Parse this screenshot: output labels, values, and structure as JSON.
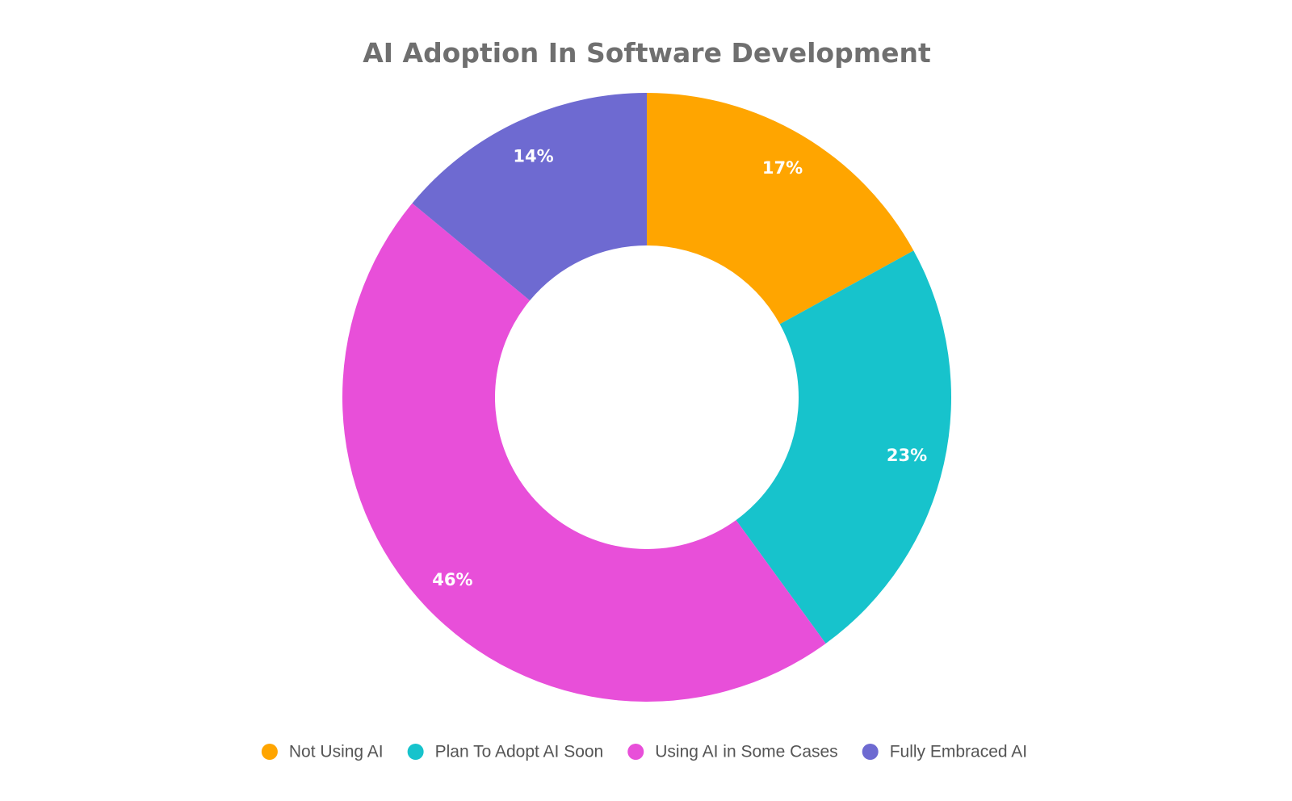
{
  "chart_data": {
    "type": "pie",
    "style": "donut",
    "title": "AI Adoption In Software Development",
    "categories": [
      "Not Using AI",
      "Plan To Adopt AI Soon",
      "Using AI in Some Cases",
      "Fully Embraced AI"
    ],
    "values": [
      17,
      23,
      46,
      14
    ],
    "data_labels": [
      "17%",
      "23%",
      "46%",
      "14%"
    ],
    "colors": [
      "#ffa500",
      "#17c3cc",
      "#e84fd9",
      "#6e6ad1"
    ],
    "legend_position": "bottom",
    "start_angle": "top",
    "direction": "clockwise"
  }
}
